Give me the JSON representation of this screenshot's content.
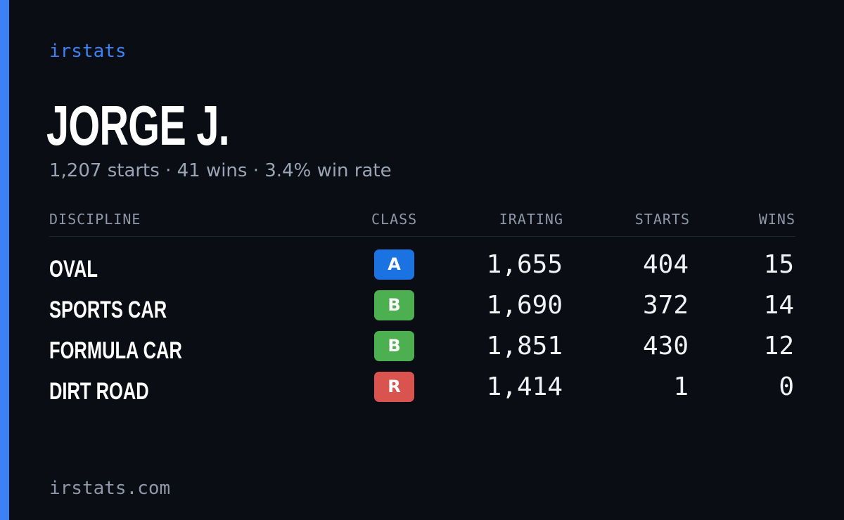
{
  "brand": "irstats",
  "driver": {
    "name": "JORGE J.",
    "summary": "1,207 starts · 41 wins · 3.4% win rate"
  },
  "table": {
    "headers": {
      "discipline": "DISCIPLINE",
      "class": "CLASS",
      "irating": "IRATING",
      "starts": "STARTS",
      "wins": "WINS"
    },
    "rows": [
      {
        "discipline": "OVAL",
        "class": "A",
        "class_color": "#1a73e0",
        "irating": "1,655",
        "starts": "404",
        "wins": "15"
      },
      {
        "discipline": "SPORTS CAR",
        "class": "B",
        "class_color": "#4caf50",
        "irating": "1,690",
        "starts": "372",
        "wins": "14"
      },
      {
        "discipline": "FORMULA CAR",
        "class": "B",
        "class_color": "#4caf50",
        "irating": "1,851",
        "starts": "430",
        "wins": "12"
      },
      {
        "discipline": "DIRT ROAD",
        "class": "R",
        "class_color": "#d9534f",
        "irating": "1,414",
        "starts": "1",
        "wins": "0"
      }
    ]
  },
  "footer": "irstats.com",
  "colors": {
    "accent": "#3b82f6",
    "background": "#0a0d14"
  }
}
